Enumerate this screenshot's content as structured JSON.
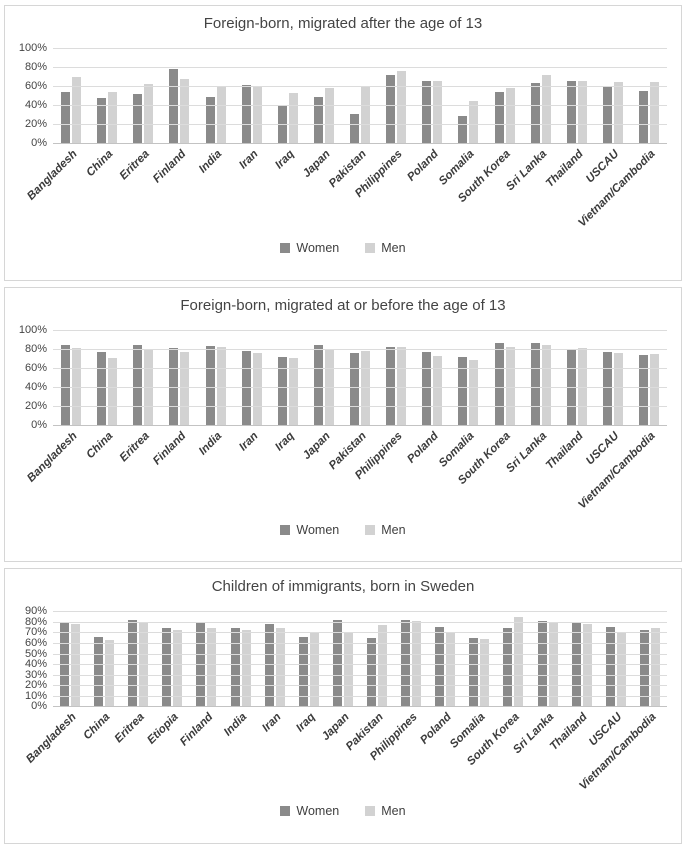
{
  "colors": {
    "women": "#8a8a8a",
    "men": "#d2d2d2",
    "grid": "#dcdcdc",
    "axis_text": "#444444"
  },
  "chart_data": [
    {
      "type": "bar",
      "title": "Foreign-born, migrated after the age of 13",
      "ylabel": "",
      "xlabel": "",
      "ylim": [
        0,
        100
      ],
      "ytick_step": 20,
      "ytick_labels": [
        "0%",
        "20%",
        "40%",
        "60%",
        "80%",
        "100%"
      ],
      "grid": true,
      "legend_position": "bottom",
      "categories": [
        "Bangladesh",
        "China",
        "Eritrea",
        "Finland",
        "India",
        "Iran",
        "Iraq",
        "Japan",
        "Pakistan",
        "Philippines",
        "Poland",
        "Somalia",
        "South Korea",
        "Sri Lanka",
        "Thailand",
        "USCAU",
        "Vietnam/Cambodia"
      ],
      "series": [
        {
          "name": "Women",
          "values": [
            54,
            47,
            52,
            78,
            48,
            61,
            40,
            48,
            31,
            72,
            65,
            28,
            54,
            63,
            65,
            59,
            55
          ]
        },
        {
          "name": "Men",
          "values": [
            70,
            54,
            62,
            67,
            60,
            60,
            53,
            58,
            60,
            76,
            65,
            44,
            58,
            72,
            65,
            64,
            64
          ]
        }
      ]
    },
    {
      "type": "bar",
      "title": "Foreign-born, migrated at or before the age of 13",
      "ylabel": "",
      "xlabel": "",
      "ylim": [
        0,
        100
      ],
      "ytick_step": 20,
      "ytick_labels": [
        "0%",
        "20%",
        "40%",
        "60%",
        "80%",
        "100%"
      ],
      "grid": true,
      "legend_position": "bottom",
      "categories": [
        "Bangladesh",
        "China",
        "Eritrea",
        "Finland",
        "India",
        "Iran",
        "Iraq",
        "Japan",
        "Pakistan",
        "Philippines",
        "Poland",
        "Somalia",
        "South Korea",
        "Sri Lanka",
        "Thailand",
        "USCAU",
        "Vietnam/Cambodia"
      ],
      "series": [
        {
          "name": "Women",
          "values": [
            84,
            77,
            84,
            81,
            83,
            78,
            71,
            84,
            75,
            82,
            76,
            71,
            86,
            86,
            80,
            77,
            73
          ]
        },
        {
          "name": "Men",
          "values": [
            81,
            70,
            80,
            76,
            82,
            75,
            70,
            80,
            78,
            82,
            72,
            68,
            82,
            84,
            81,
            75,
            74
          ]
        }
      ]
    },
    {
      "type": "bar",
      "title": "Children of immigrants, born in Sweden",
      "ylabel": "",
      "xlabel": "",
      "ylim": [
        0,
        90
      ],
      "ytick_step": 10,
      "ytick_labels": [
        "0%",
        "10%",
        "20%",
        "30%",
        "40%",
        "50%",
        "60%",
        "70%",
        "80%",
        "90%"
      ],
      "grid": true,
      "legend_position": "bottom",
      "categories": [
        "Bangladesh",
        "China",
        "Eritrea",
        "Etiopia",
        "Finland",
        "India",
        "Iran",
        "Iraq",
        "Japan",
        "Pakistan",
        "Philippines",
        "Poland",
        "Somalia",
        "South Korea",
        "Sri Lanka",
        "Thailand",
        "USCAU",
        "Vietnam/Cambodia"
      ],
      "series": [
        {
          "name": "Women",
          "values": [
            80,
            66,
            82,
            74,
            80,
            74,
            78,
            66,
            82,
            65,
            82,
            75,
            65,
            74,
            81,
            80,
            75,
            72
          ]
        },
        {
          "name": "Men",
          "values": [
            78,
            63,
            80,
            72,
            74,
            72,
            74,
            70,
            70,
            77,
            81,
            70,
            64,
            85,
            80,
            78,
            70,
            74
          ]
        }
      ]
    }
  ]
}
